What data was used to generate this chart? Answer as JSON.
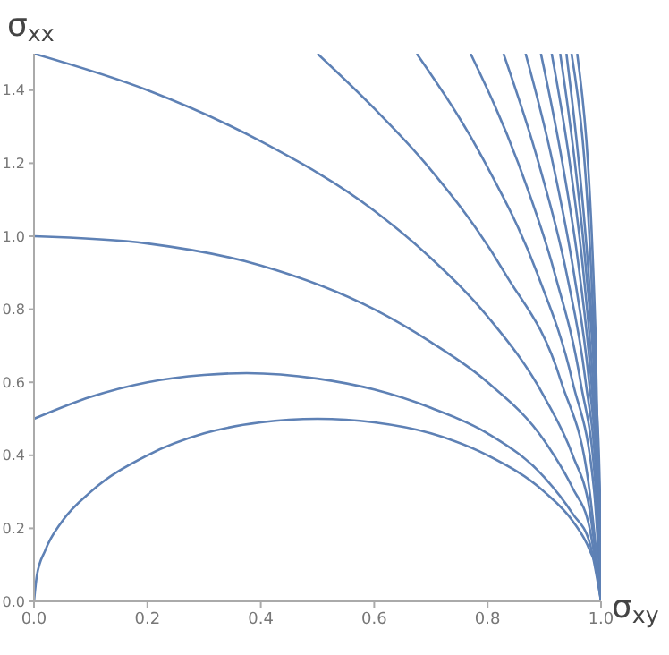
{
  "chart_data": {
    "type": "line",
    "xlabel": "σ$_{xy}$",
    "ylabel": "σ$_{xx}$",
    "xlim": [
      0,
      1
    ],
    "ylim": [
      0,
      1.5
    ],
    "xticks": [
      {
        "value": 0,
        "label": "0.0"
      },
      {
        "value": 0.2,
        "label": "0.2"
      },
      {
        "value": 0.4,
        "label": "0.4"
      },
      {
        "value": 0.6,
        "label": "0.6"
      },
      {
        "value": 0.8,
        "label": "0.8"
      },
      {
        "value": 1,
        "label": "1.0"
      }
    ],
    "yticks": [
      {
        "value": 0,
        "label": "0.0"
      },
      {
        "value": 0.2,
        "label": "0.2"
      },
      {
        "value": 0.4,
        "label": "0.4"
      },
      {
        "value": 0.6,
        "label": "0.6"
      },
      {
        "value": 0.8,
        "label": "0.8"
      },
      {
        "value": 1,
        "label": "1.0"
      },
      {
        "value": 1.2,
        "label": "1.2"
      },
      {
        "value": 1.4,
        "label": "1.4"
      }
    ],
    "grid": false,
    "legend": false,
    "series": [
      {
        "color": "#5e81b5",
        "x": [
          0,
          0.005,
          0.02,
          0.05,
          0.1,
          0.2,
          0.3,
          0.4,
          0.5,
          0.6,
          0.7,
          0.8,
          0.9,
          0.95,
          0.98,
          0.995,
          1
        ],
        "values": [
          0,
          0.07,
          0.14,
          0.22,
          0.3,
          0.4,
          0.46,
          0.49,
          0.5,
          0.49,
          0.46,
          0.4,
          0.3,
          0.22,
          0.14,
          0.07,
          0
        ]
      },
      {
        "color": "#5e81b5",
        "x": [
          0,
          0.1,
          0.2,
          0.3,
          0.375,
          0.5,
          0.6,
          0.7,
          0.8,
          0.9,
          0.95,
          0.98,
          1
        ],
        "values": [
          0.5,
          0.56,
          0.6,
          0.62,
          0.625,
          0.61,
          0.58,
          0.53,
          0.46,
          0.34,
          0.24,
          0.16,
          0
        ]
      },
      {
        "color": "#5e81b5",
        "x": [
          0,
          0.2,
          0.4,
          0.6,
          0.7,
          0.8,
          0.9,
          0.95,
          0.98,
          1
        ],
        "values": [
          1,
          0.98,
          0.92,
          0.8,
          0.71,
          0.6,
          0.44,
          0.31,
          0.2,
          0
        ]
      },
      {
        "color": "#5e81b5",
        "x": [
          0,
          0.2,
          0.4,
          0.6,
          0.7,
          0.8,
          0.9,
          0.95,
          0.98,
          1
        ],
        "values": [
          1.5,
          1.4,
          1.26,
          1.07,
          0.94,
          0.78,
          0.56,
          0.4,
          0.25,
          0
        ]
      },
      {
        "color": "#5e81b5",
        "x": [
          0.5,
          0.6,
          0.69,
          0.83,
          0.93,
          0.98,
          1
        ],
        "values": [
          1.5,
          1.35,
          1.2,
          0.9,
          0.6,
          0.3,
          0
        ]
      },
      {
        "color": "#5e81b5",
        "x": [
          0.675,
          0.796,
          0.887,
          0.95,
          0.988,
          1
        ],
        "values": [
          1.5,
          1.2,
          0.9,
          0.6,
          0.3,
          0
        ]
      },
      {
        "color": "#5e81b5",
        "x": [
          0.77,
          0.854,
          0.918,
          0.964,
          0.991,
          1
        ],
        "values": [
          1.5,
          1.2,
          0.9,
          0.6,
          0.3,
          0
        ]
      },
      {
        "color": "#5e81b5",
        "x": [
          0.828,
          0.89,
          0.939,
          0.973,
          0.993,
          1
        ],
        "values": [
          1.5,
          1.2,
          0.9,
          0.6,
          0.3,
          0
        ]
      },
      {
        "color": "#5e81b5",
        "x": [
          0.867,
          0.915,
          0.952,
          0.979,
          0.995,
          1
        ],
        "values": [
          1.5,
          1.2,
          0.9,
          0.6,
          0.3,
          0
        ]
      },
      {
        "color": "#5e81b5",
        "x": [
          0.894,
          0.932,
          0.962,
          0.983,
          0.996,
          1
        ],
        "values": [
          1.5,
          1.2,
          0.9,
          0.6,
          0.3,
          0
        ]
      },
      {
        "color": "#5e81b5",
        "x": [
          0.913,
          0.945,
          0.969,
          0.986,
          0.997,
          1
        ],
        "values": [
          1.5,
          1.2,
          0.9,
          0.6,
          0.3,
          0
        ]
      },
      {
        "color": "#5e81b5",
        "x": [
          0.928,
          0.954,
          0.974,
          0.989,
          0.997,
          1
        ],
        "values": [
          1.5,
          1.2,
          0.9,
          0.6,
          0.3,
          0
        ]
      },
      {
        "color": "#5e81b5",
        "x": [
          0.939,
          0.961,
          0.978,
          0.99,
          0.998,
          1
        ],
        "values": [
          1.5,
          1.2,
          0.9,
          0.6,
          0.3,
          0
        ]
      },
      {
        "color": "#5e81b5",
        "x": [
          0.948,
          0.987,
          1
        ],
        "values": [
          1.5,
          0.75,
          0
        ]
      },
      {
        "color": "#5e81b5",
        "x": [
          0.958,
          0.99,
          1
        ],
        "values": [
          1.5,
          0.75,
          0
        ]
      }
    ]
  }
}
